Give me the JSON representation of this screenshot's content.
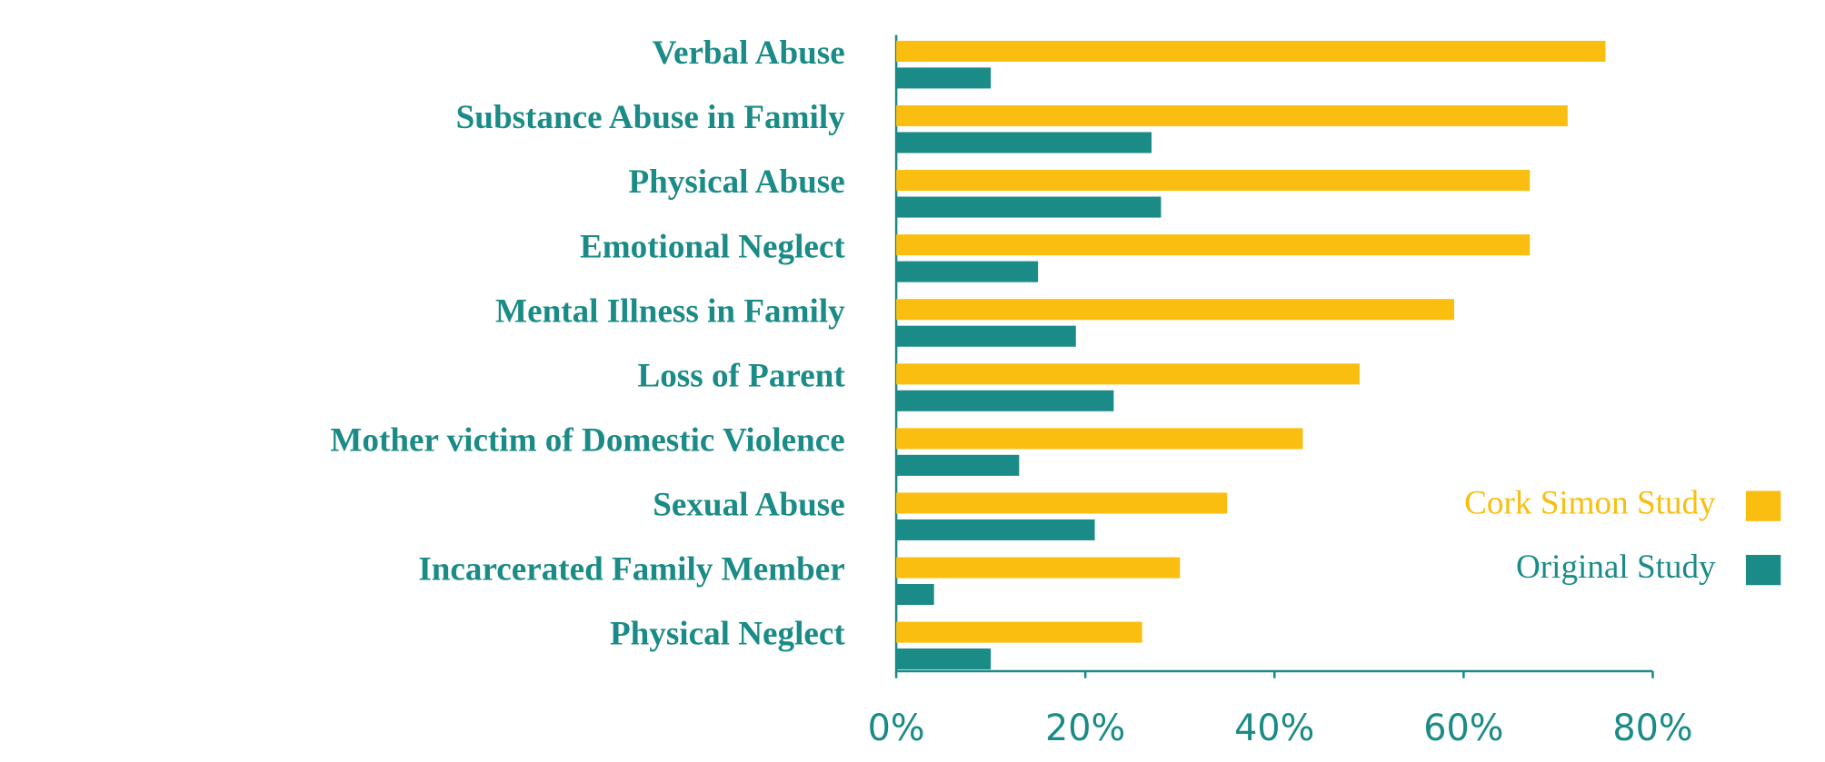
{
  "chart_data": {
    "type": "bar",
    "orientation": "horizontal",
    "categories": [
      "Verbal Abuse",
      "Substance Abuse in Family",
      "Physical Abuse",
      "Emotional Neglect",
      "Mental Illness in Family",
      "Loss of Parent",
      "Mother victim of Domestic Violence",
      "Sexual Abuse",
      "Incarcerated Family Member",
      "Physical Neglect"
    ],
    "series": [
      {
        "name": "Cork Simon Study",
        "color": "#f9be0f",
        "values": [
          75,
          71,
          67,
          67,
          59,
          49,
          43,
          35,
          30,
          26
        ]
      },
      {
        "name": "Original Study",
        "color": "#1a8b86",
        "values": [
          10,
          27,
          28,
          15,
          19,
          23,
          13,
          21,
          4,
          10
        ]
      }
    ],
    "xlim": [
      0,
      80
    ],
    "xticks": [
      {
        "value": 0,
        "label": "0%"
      },
      {
        "value": 20,
        "label": "20%"
      },
      {
        "value": 40,
        "label": "40%"
      },
      {
        "value": 60,
        "label": "60%"
      },
      {
        "value": 80,
        "label": "80%"
      }
    ],
    "legend": "right"
  }
}
